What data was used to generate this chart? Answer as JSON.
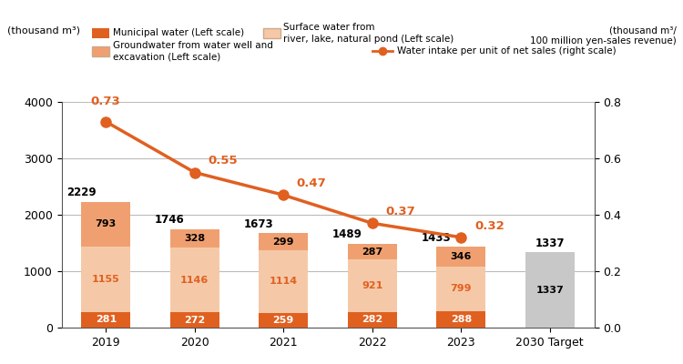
{
  "years": [
    "2019",
    "2020",
    "2021",
    "2022",
    "2023",
    "2030 Target"
  ],
  "municipal_water": [
    281,
    272,
    259,
    282,
    288,
    0
  ],
  "surface_water": [
    1155,
    1146,
    1114,
    921,
    799,
    0
  ],
  "groundwater": [
    793,
    328,
    299,
    287,
    346,
    0
  ],
  "target_total": 1337,
  "totals": [
    2229,
    1746,
    1673,
    1489,
    1433,
    1337
  ],
  "line_values": [
    0.73,
    0.55,
    0.47,
    0.37,
    0.32
  ],
  "color_municipal": "#E06020",
  "color_surface": "#F5C9A8",
  "color_groundwater": "#F0A070",
  "color_target": "#C8C8C8",
  "color_line": "#E06020",
  "ylim_left": [
    0,
    4000
  ],
  "ylim_right": [
    0.0,
    0.8
  ],
  "yticks_left": [
    0,
    1000,
    2000,
    3000,
    4000
  ],
  "yticks_right": [
    0.0,
    0.2,
    0.4,
    0.6,
    0.8
  ],
  "ylabel_left": "(thousand m³)",
  "ylabel_right": "(thousand m³/\n100 million yen-sales revenue)",
  "legend_municipal": "Municipal water (Left scale)",
  "legend_surface": "Surface water from\nriver, lake, natural pond (Left scale)",
  "legend_groundwater": "Groundwater from water well and\nexcavation (Left scale)",
  "legend_line": "Water intake per unit of net sales (right scale)"
}
